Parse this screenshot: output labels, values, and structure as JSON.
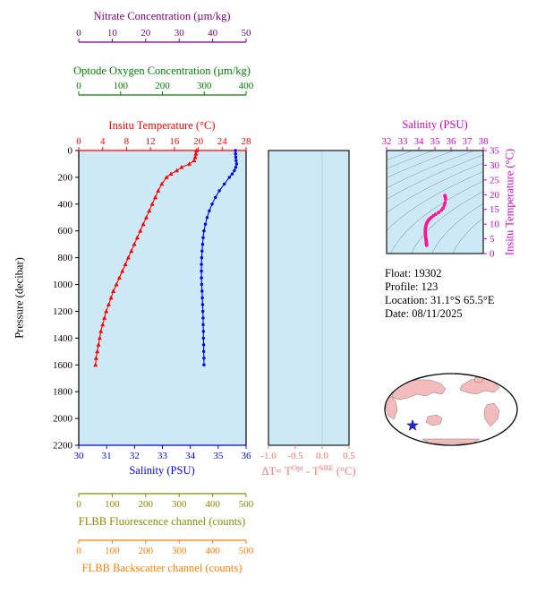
{
  "colors": {
    "nitrate": "#800080",
    "oxygen": "#008000",
    "temperature": "#ff0000",
    "salinity": "#0000ff",
    "fluorescence": "#8b8b00",
    "backscatter": "#ff8000",
    "delta": "#f4766e",
    "magenta": "#cc00cc",
    "ts_curve": "#ff1493",
    "plot_bg": "#cde9f5",
    "axis_black": "#000000",
    "contour": "#8fb2c2",
    "land": "#f2bcbc",
    "land_edge": "#9a6a6a",
    "star": "#2929c8"
  },
  "chart_data": [
    {
      "id": "profile",
      "type": "line",
      "y_axis": {
        "label": "Pressure (decibar)",
        "min": 0,
        "max": 2200,
        "ticks": [
          0,
          200,
          400,
          600,
          800,
          1000,
          1200,
          1400,
          1600,
          1800,
          2000,
          2200
        ]
      },
      "x_axes": [
        {
          "id": "nitrate",
          "label": "Nitrate Concentration (µm/kg)",
          "min": 0,
          "max": 50,
          "ticks": [
            0,
            10,
            20,
            30,
            40,
            50
          ],
          "color_key": "nitrate",
          "position": "top-detached-2"
        },
        {
          "id": "oxygen",
          "label": "Optode Oxygen Concentration (µm/kg)",
          "min": 0,
          "max": 400,
          "ticks": [
            0,
            100,
            200,
            300,
            400
          ],
          "color_key": "oxygen",
          "position": "top-detached-1"
        },
        {
          "id": "temperature",
          "label": "Insitu Temperature (°C)",
          "min": 0,
          "max": 28,
          "ticks": [
            0,
            4,
            8,
            12,
            16,
            20,
            24,
            28
          ],
          "color_key": "temperature",
          "position": "top"
        },
        {
          "id": "salinity",
          "label": "Salinity (PSU)",
          "min": 30,
          "max": 36,
          "ticks": [
            30,
            31,
            32,
            33,
            34,
            35,
            36
          ],
          "color_key": "salinity",
          "position": "bottom"
        },
        {
          "id": "fluorescence",
          "label": "FLBB Fluorescence channel (counts)",
          "min": 0,
          "max": 500,
          "ticks": [
            0,
            100,
            200,
            300,
            400,
            500
          ],
          "color_key": "fluorescence",
          "position": "bottom-detached-1"
        },
        {
          "id": "backscatter",
          "label": "FLBB Backscatter channel (counts)",
          "min": 0,
          "max": 500,
          "ticks": [
            0,
            100,
            200,
            300,
            400,
            500
          ],
          "color_key": "backscatter",
          "position": "bottom-detached-2"
        }
      ],
      "series": [
        {
          "name": "Insitu Temperature",
          "x_axis": "temperature",
          "marker": "triangle",
          "color_key": "temperature",
          "pressure": [
            0,
            25,
            50,
            75,
            100,
            125,
            150,
            175,
            200,
            250,
            300,
            350,
            400,
            450,
            500,
            550,
            600,
            650,
            700,
            750,
            800,
            850,
            900,
            950,
            1000,
            1050,
            1100,
            1150,
            1200,
            1250,
            1300,
            1350,
            1400,
            1450,
            1500,
            1550,
            1600
          ],
          "values": [
            19.7,
            19.6,
            19.5,
            19.3,
            18.5,
            17.2,
            16.4,
            15.4,
            14.7,
            13.9,
            13.3,
            12.8,
            12.3,
            11.8,
            11.3,
            10.8,
            10.3,
            9.8,
            9.3,
            8.8,
            8.3,
            7.8,
            7.3,
            6.8,
            6.3,
            5.8,
            5.4,
            5.0,
            4.6,
            4.3,
            4.0,
            3.7,
            3.5,
            3.3,
            3.1,
            2.9,
            2.8
          ]
        },
        {
          "name": "Salinity",
          "x_axis": "salinity",
          "marker": "circle",
          "color_key": "salinity",
          "pressure": [
            0,
            25,
            50,
            75,
            100,
            125,
            150,
            175,
            200,
            250,
            300,
            350,
            400,
            450,
            500,
            550,
            600,
            650,
            700,
            750,
            800,
            850,
            900,
            950,
            1000,
            1050,
            1100,
            1150,
            1200,
            1250,
            1300,
            1350,
            1400,
            1450,
            1500,
            1550,
            1600
          ],
          "values": [
            35.62,
            35.62,
            35.63,
            35.64,
            35.66,
            35.63,
            35.58,
            35.5,
            35.4,
            35.22,
            35.04,
            34.9,
            34.78,
            34.68,
            34.6,
            34.54,
            34.49,
            34.46,
            34.44,
            34.42,
            34.41,
            34.4,
            34.4,
            34.4,
            34.41,
            34.42,
            34.43,
            34.44,
            34.45,
            34.46,
            34.46,
            34.47,
            34.47,
            34.48,
            34.48,
            34.49,
            34.49
          ]
        }
      ]
    },
    {
      "id": "delta_t",
      "type": "line",
      "x_axis": {
        "label": "ΔT= TOpt - TSBE (°C)",
        "label_parts": [
          "ΔT= T",
          "Opt",
          " - T",
          "SBE",
          " (°C)"
        ],
        "min": -1.0,
        "max": 0.5,
        "ticks": [
          -1.0,
          -0.5,
          0.0,
          0.5
        ],
        "tick_labels": [
          "-1.0",
          "-0.5",
          "0.0",
          "0.5"
        ],
        "color_key": "delta"
      },
      "y_axis": {
        "min": 0,
        "max": 2200
      },
      "series": {
        "pressure": [],
        "values": []
      }
    },
    {
      "id": "ts_diagram",
      "type": "line",
      "x_axis": {
        "label": "Salinity (PSU)",
        "min": 32,
        "max": 38,
        "ticks": [
          32,
          33,
          34,
          35,
          36,
          37,
          38
        ],
        "color_key": "magenta"
      },
      "y_axis": {
        "label": "Insitu Temperature (°C)",
        "min": 0,
        "max": 35,
        "ticks": [
          0,
          5,
          10,
          15,
          20,
          25,
          30,
          35
        ],
        "color_key": "magenta"
      },
      "curve_color_key": "ts_curve",
      "curve_source": "profile temperature & salinity series",
      "sigma_theta_contours": [
        19,
        20,
        21,
        22,
        23,
        24,
        25,
        26,
        27,
        28,
        29
      ]
    }
  ],
  "info": {
    "lines": [
      "Float:  19302",
      "Profile:  123",
      "Location:  31.1°S 65.5°E",
      "Date:  08/11/2025"
    ]
  },
  "map": {
    "star_icon": "float-position-star"
  }
}
